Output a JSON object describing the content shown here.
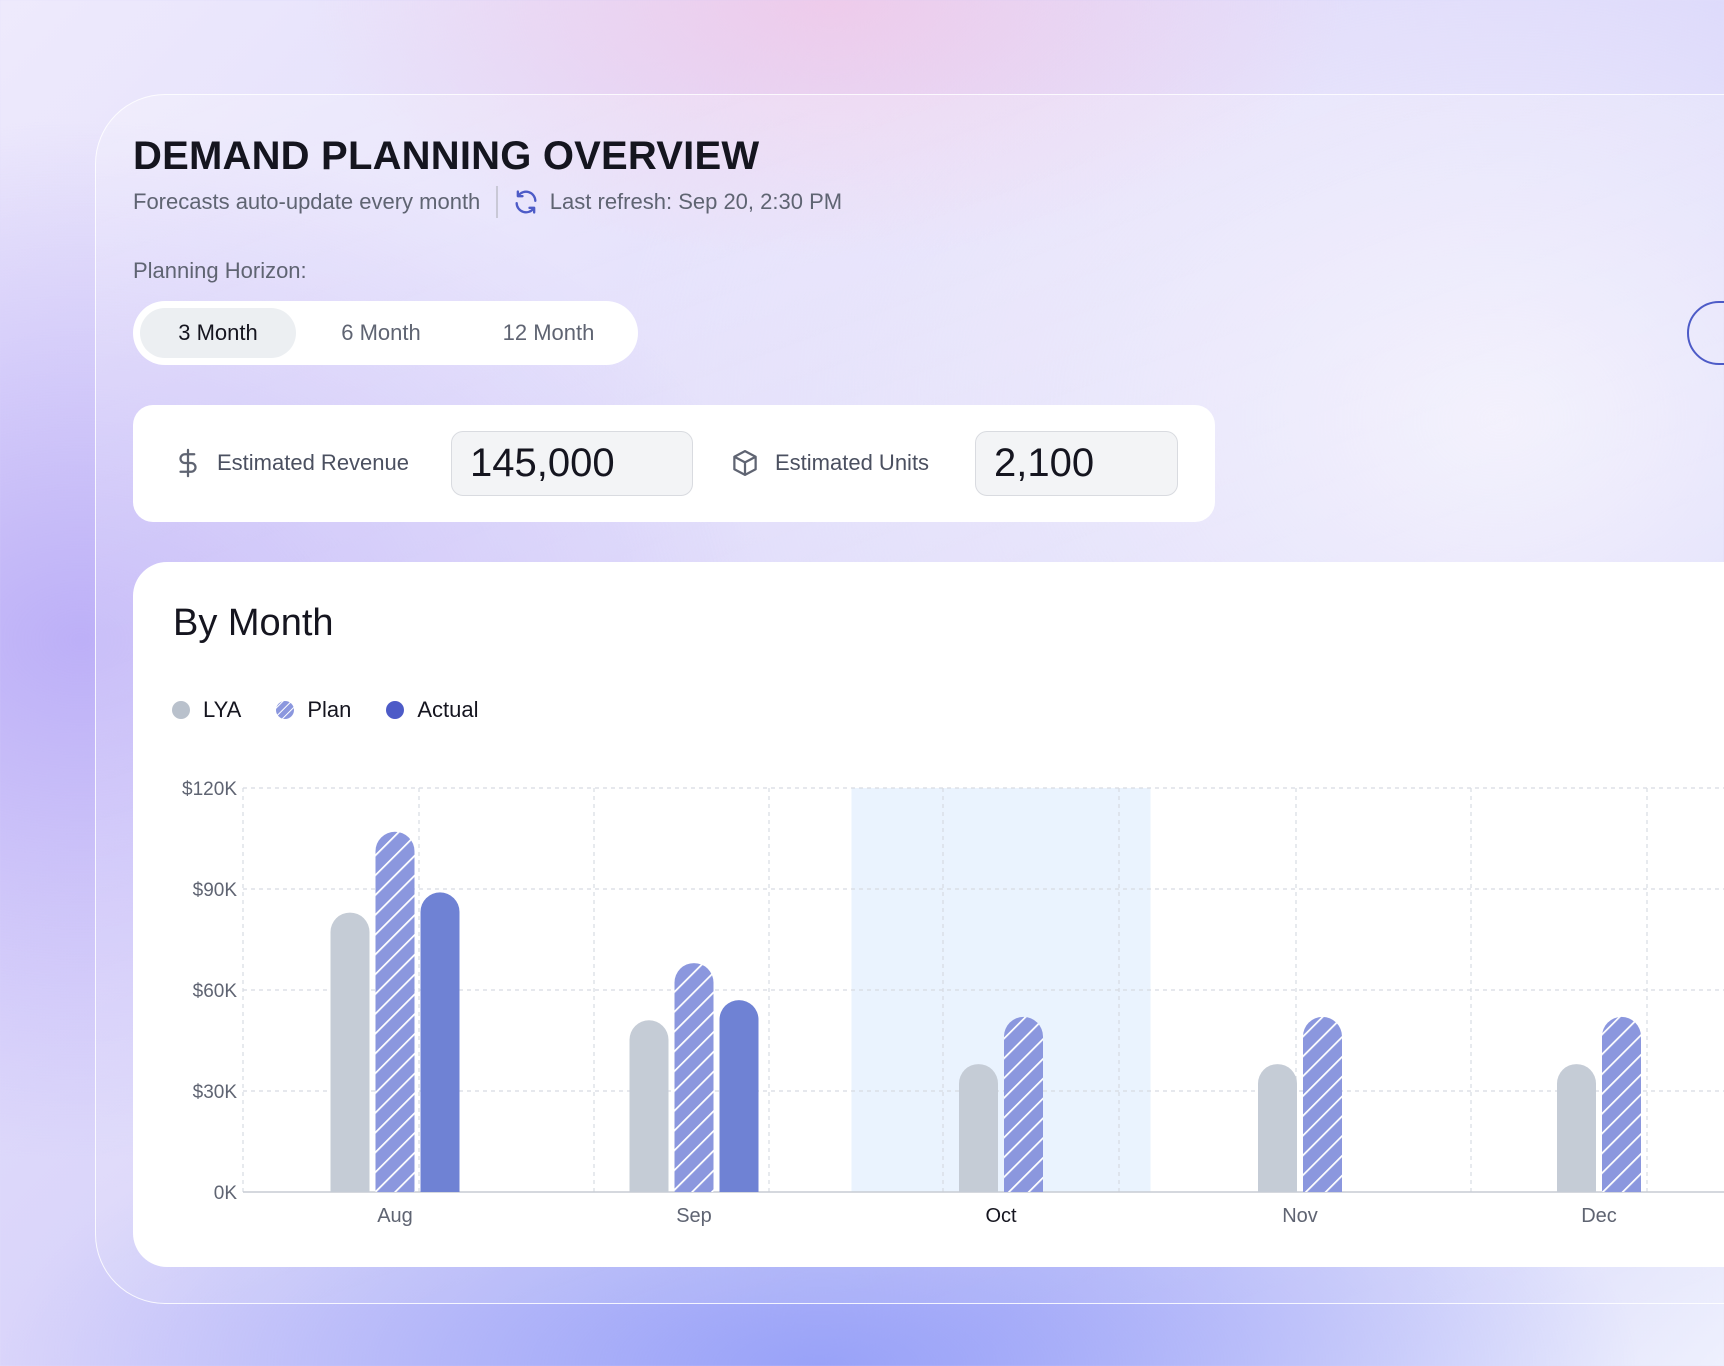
{
  "header": {
    "title": "DEMAND PLANNING OVERVIEW",
    "subtitle": "Forecasts auto-update every month",
    "last_refresh": "Last refresh: Sep 20, 2:30 PM"
  },
  "planning": {
    "label": "Planning Horizon:",
    "options": [
      "3 Month",
      "6 Month",
      "12 Month"
    ],
    "selected": "3 Month"
  },
  "estimates": {
    "revenue_label": "Estimated Revenue",
    "revenue_value": "145,000",
    "units_label": "Estimated Units",
    "units_value": "2,100"
  },
  "chart_card": {
    "title": "By Month"
  },
  "colors": {
    "lya": "#c5ccd6",
    "plan": "#8b97de",
    "actual": "#6f82d4",
    "legend_actual": "#4d5bc7",
    "highlight": "#eaf3fe",
    "accent": "#4d5bc7"
  },
  "chart_data": {
    "type": "bar",
    "categories": [
      "Aug",
      "Sep",
      "Oct",
      "Nov",
      "Dec"
    ],
    "highlighted_category": "Oct",
    "series": [
      {
        "name": "LYA",
        "values": [
          83000,
          51000,
          38000,
          38000,
          38000
        ]
      },
      {
        "name": "Plan",
        "values": [
          107000,
          68000,
          52000,
          52000,
          52000
        ]
      },
      {
        "name": "Actual",
        "values": [
          89000,
          57000,
          null,
          null,
          null
        ]
      }
    ],
    "y_ticks": [
      "0K",
      "$30K",
      "$60K",
      "$90K",
      "$120K"
    ],
    "ylim": [
      0,
      120000
    ],
    "grid": true,
    "legend_position": "top-left"
  }
}
